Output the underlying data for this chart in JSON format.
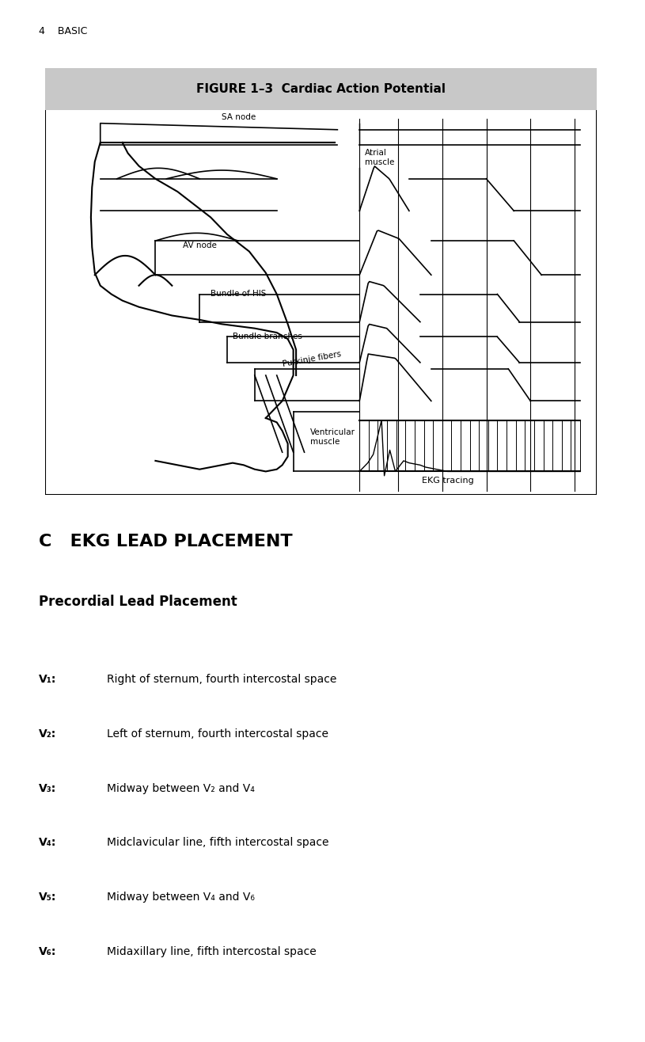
{
  "page_number": "4",
  "page_label": "BASIC",
  "figure_title": "FIGURE 1–3  Cardiac Action Potential",
  "figure_title_bg": "#d0d0d0",
  "section_title": "C   EKG LEAD PLACEMENT",
  "subsection_title": "Precordial Lead Placement",
  "leads": [
    {
      "label": "V₁:",
      "desc": "Right of sternum, fourth intercostal space"
    },
    {
      "label": "V₂:",
      "desc": "Left of sternum, fourth intercostal space"
    },
    {
      "label": "V₃:",
      "desc": "Midway between V₂ and V₄"
    },
    {
      "label": "V₄:",
      "desc": "Midclavicular line, fifth intercostal space"
    },
    {
      "label": "V₅:",
      "desc": "Midway between V₄ and V₆"
    },
    {
      "label": "V₆:",
      "desc": "Midaxillary line, fifth intercostal space"
    }
  ],
  "bg_color": "#ffffff",
  "text_color": "#000000",
  "figure_box_color": "#000000",
  "annotation_labels": [
    "SA node",
    "Atrial\nmuscle",
    "AV node",
    "Bundle of HIS",
    "Bundle branches",
    "Purkinje fibers",
    "Ventricular\nmuscle",
    "EKG tracing"
  ]
}
